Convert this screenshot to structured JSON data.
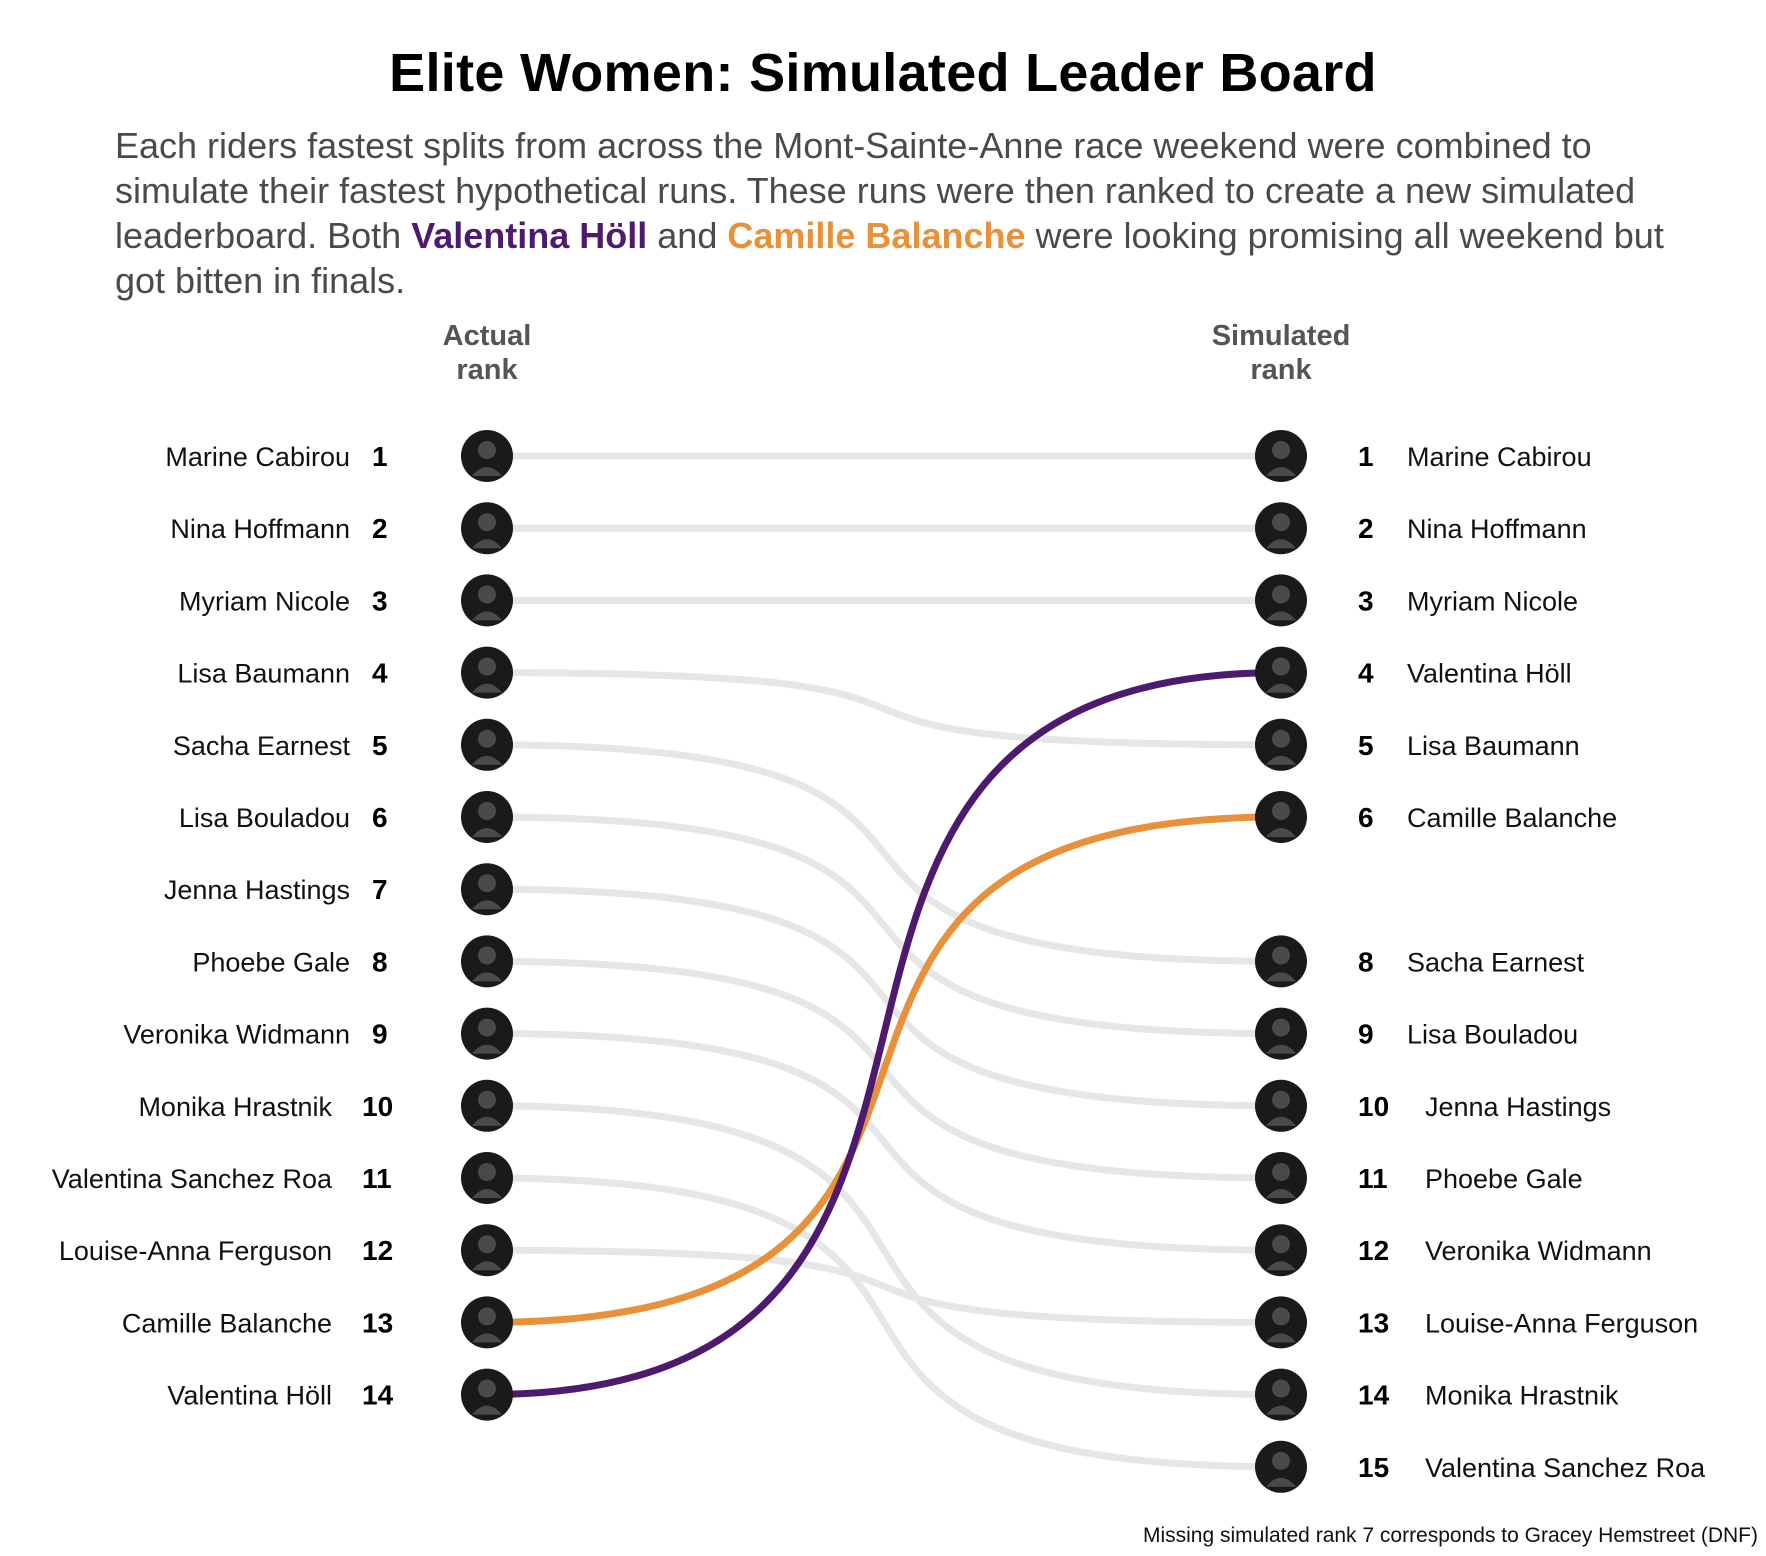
{
  "title": "Elite Women: Simulated Leader Board",
  "subtitle": {
    "before": "Each riders fastest splits from across the Mont-Sainte-Anne race weekend were combined to simulate their fastest hypothetical runs. These runs were then ranked to create a new simulated leaderboard. Both ",
    "highlight_a": "Valentina Höll",
    "middle": " and ",
    "highlight_b": "Camille Balanche",
    "after": " were looking promising all weekend but got bitten in finals."
  },
  "footnote": "Missing simulated rank 7 corresponds to Gracey Hemstreet (DNF)",
  "colors": {
    "highlight_a": "#4e1a6e",
    "highlight_b": "#e8913a",
    "neutral_line": "#e6e6e6",
    "avatar": "#1a1a1a"
  },
  "chart_data": {
    "type": "slope",
    "left_header": [
      "Actual",
      "rank"
    ],
    "right_header": [
      "Simulated",
      "rank"
    ],
    "riders": [
      {
        "name": "Marine Cabirou",
        "actual": 1,
        "simulated": 1,
        "highlight": null
      },
      {
        "name": "Nina Hoffmann",
        "actual": 2,
        "simulated": 2,
        "highlight": null
      },
      {
        "name": "Myriam Nicole",
        "actual": 3,
        "simulated": 3,
        "highlight": null
      },
      {
        "name": "Lisa Baumann",
        "actual": 4,
        "simulated": 5,
        "highlight": null
      },
      {
        "name": "Sacha Earnest",
        "actual": 5,
        "simulated": 8,
        "highlight": null
      },
      {
        "name": "Lisa Bouladou",
        "actual": 6,
        "simulated": 9,
        "highlight": null
      },
      {
        "name": "Jenna Hastings",
        "actual": 7,
        "simulated": 10,
        "highlight": null
      },
      {
        "name": "Phoebe Gale",
        "actual": 8,
        "simulated": 11,
        "highlight": null
      },
      {
        "name": "Veronika Widmann",
        "actual": 9,
        "simulated": 12,
        "highlight": null
      },
      {
        "name": "Monika Hrastnik",
        "actual": 10,
        "simulated": 14,
        "highlight": null
      },
      {
        "name": "Valentina Sanchez Roa",
        "actual": 11,
        "simulated": 15,
        "highlight": null
      },
      {
        "name": "Louise-Anna Ferguson",
        "actual": 12,
        "simulated": 13,
        "highlight": null
      },
      {
        "name": "Camille Balanche",
        "actual": 13,
        "simulated": 6,
        "highlight": "b"
      },
      {
        "name": "Valentina Höll",
        "actual": 14,
        "simulated": 4,
        "highlight": "a"
      }
    ],
    "missing_simulated_rank": 7
  }
}
